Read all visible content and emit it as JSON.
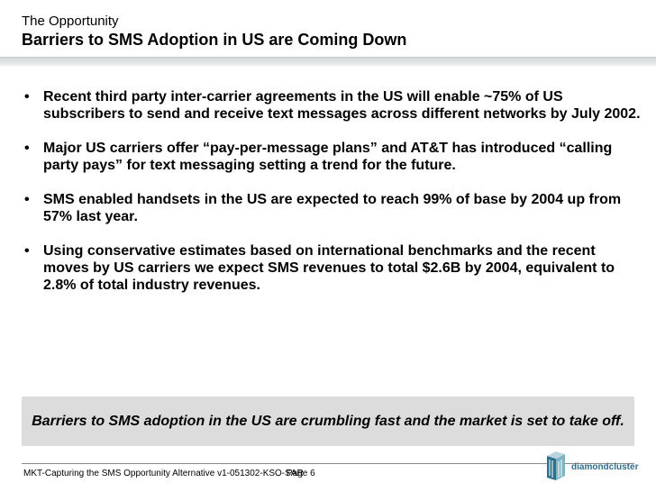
{
  "header": {
    "super_title": "The Opportunity",
    "title": "Barriers to SMS Adoption in US are Coming Down"
  },
  "bullets": [
    "Recent third party inter-carrier agreements in the US will enable ~75% of US subscribers to send and receive text messages across different networks by July 2002.",
    "Major US carriers offer “pay-per-message plans” and AT&T has introduced “calling party pays” for text messaging setting a trend for the future.",
    "SMS enabled handsets in the US are expected to reach 99% of base by 2004 up from 57% last year.",
    "Using conservative estimates based on international benchmarks and the recent moves by US carriers we expect SMS revenues to total $2.6B by 2004, equivalent to 2.8% of total industry revenues."
  ],
  "bullet_symbol": "•",
  "callout": "Barriers to SMS adoption in the US are crumbling fast and the market is set to take off.",
  "footer": {
    "doc_id": "MKT-Capturing the SMS Opportunity Alternative v1-051302-KSO-SAR",
    "page_label": "Page  6"
  },
  "logo": {
    "text": "diamondcluster",
    "icon": "diamondcluster-logo-icon",
    "color": "#2f6f8a"
  }
}
